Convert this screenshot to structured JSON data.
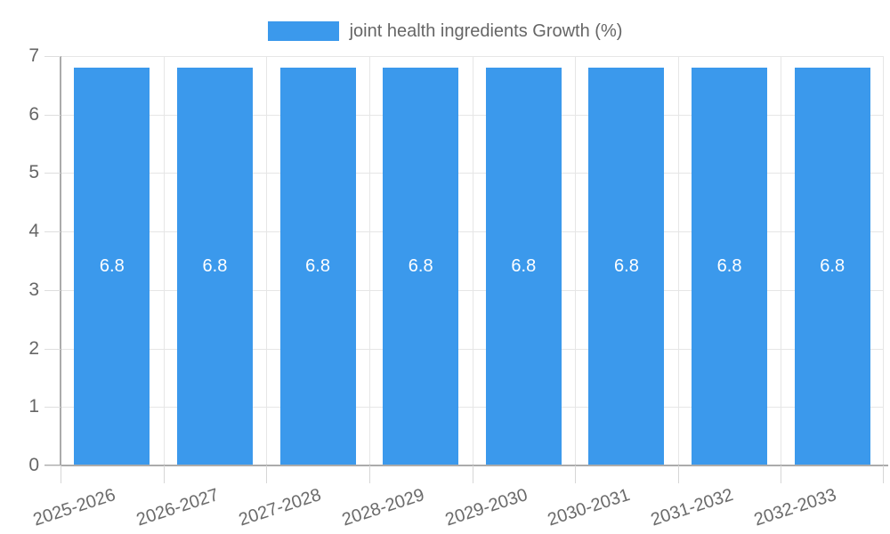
{
  "chart_data": {
    "type": "bar",
    "title": "",
    "legend": {
      "position": "top",
      "label": "joint health ingredients Growth (%)"
    },
    "categories": [
      "2025-2026",
      "2026-2027",
      "2027-2028",
      "2028-2029",
      "2029-2030",
      "2030-2031",
      "2031-2032",
      "2032-2033"
    ],
    "series": [
      {
        "name": "joint health ingredients Growth (%)",
        "values": [
          6.8,
          6.8,
          6.8,
          6.8,
          6.8,
          6.8,
          6.8,
          6.8
        ],
        "color": "#3b99ec"
      }
    ],
    "data_labels": [
      "6.8",
      "6.8",
      "6.8",
      "6.8",
      "6.8",
      "6.8",
      "6.8",
      "6.8"
    ],
    "xlabel": "",
    "ylabel": "",
    "ylim": [
      0,
      7
    ],
    "yticks": [
      0,
      1,
      2,
      3,
      4,
      5,
      6,
      7
    ],
    "grid": true,
    "x_tick_rotation_deg": -18
  },
  "colors": {
    "bar": "#3b99ec",
    "bar_value_text": "#ffffff",
    "axis_text": "#666666",
    "legend_text": "#666666",
    "gridline": "#e6e6e6",
    "axis_line": "#ababab",
    "background": "#ffffff"
  }
}
